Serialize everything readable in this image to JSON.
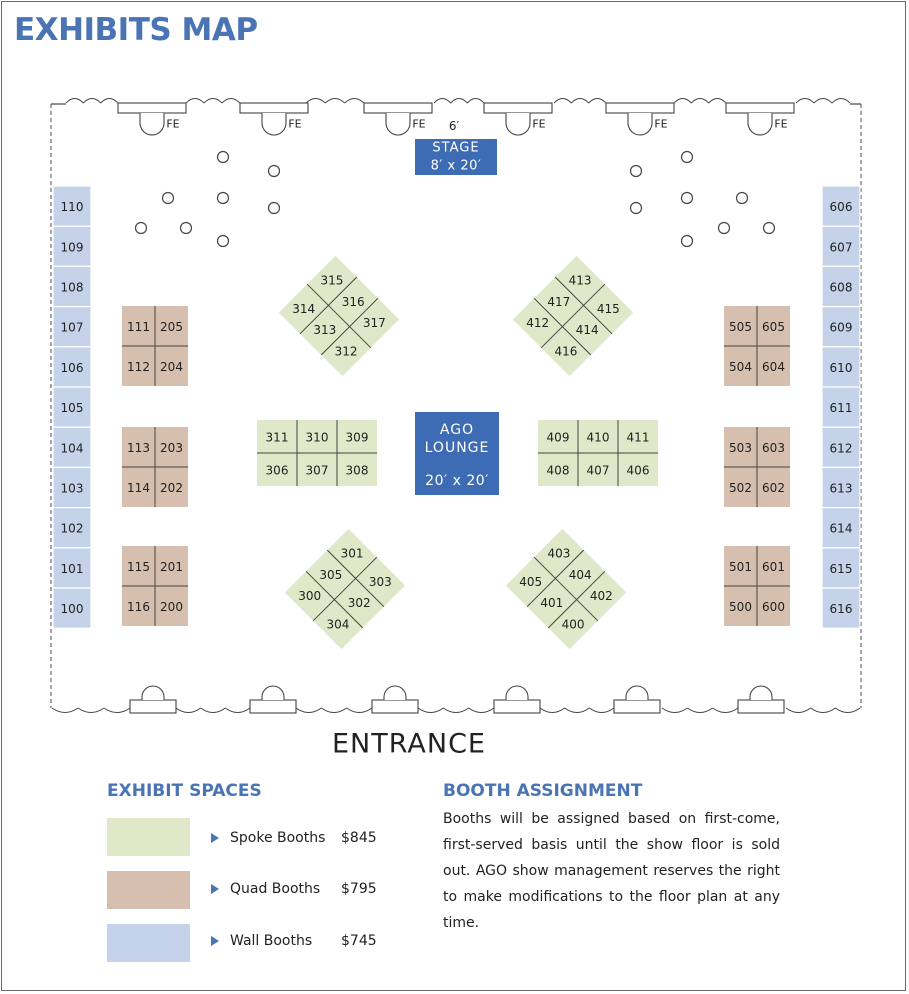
{
  "title": "EXHIBITS MAP",
  "colors": {
    "spoke": "#dfe8c8",
    "quad": "#d6bfae",
    "wall": "#c5d3ea",
    "accent": "#4a74b4",
    "stage": "#3d6cb4"
  },
  "map": {
    "fe_label": "FE",
    "stage_dim": "6′",
    "stage_title": "STAGE",
    "stage_size": "8′ x 20′",
    "lounge_title1": "AGO",
    "lounge_title2": "LOUNGE",
    "lounge_size": "20′ x 20′",
    "entrance": "ENTRANCE",
    "wall_left": [
      "110",
      "109",
      "108",
      "107",
      "106",
      "105",
      "104",
      "103",
      "102",
      "101",
      "100"
    ],
    "wall_right": [
      "606",
      "607",
      "608",
      "609",
      "610",
      "611",
      "612",
      "613",
      "614",
      "615",
      "616"
    ],
    "quad_left": [
      [
        "111",
        "205",
        "112",
        "204"
      ],
      [
        "113",
        "203",
        "114",
        "202"
      ],
      [
        "115",
        "201",
        "116",
        "200"
      ]
    ],
    "quad_right": [
      [
        "505",
        "605",
        "504",
        "604"
      ],
      [
        "503",
        "603",
        "502",
        "602"
      ],
      [
        "501",
        "601",
        "500",
        "600"
      ]
    ],
    "center_left": {
      "top": [
        "311",
        "310",
        "309"
      ],
      "bottom": [
        "306",
        "307",
        "308"
      ]
    },
    "center_right": {
      "top": [
        "409",
        "410",
        "411"
      ],
      "bottom": [
        "408",
        "407",
        "406"
      ]
    },
    "diamond_nw": [
      "315",
      "316",
      "317",
      "314",
      "313",
      "312"
    ],
    "diamond_ne": [
      "415",
      "414",
      "416",
      "413",
      "417",
      "412"
    ],
    "diamond_sw": [
      "303",
      "302",
      "304",
      "301",
      "305",
      "300"
    ],
    "diamond_se": [
      "403",
      "404",
      "402",
      "405",
      "401",
      "400"
    ]
  },
  "legend": {
    "heading": "EXHIBIT SPACES",
    "items": [
      {
        "label": "Spoke Booths",
        "price": "$845"
      },
      {
        "label": "Quad Booths",
        "price": "$795"
      },
      {
        "label": "Wall Booths",
        "price": "$745"
      }
    ]
  },
  "assignment": {
    "heading": "BOOTH ASSIGNMENT",
    "text": "Booths will be assigned based on first-come, first-served basis until the show floor is sold out. AGO show management reserves the right to make modifications to the floor plan at any time."
  }
}
